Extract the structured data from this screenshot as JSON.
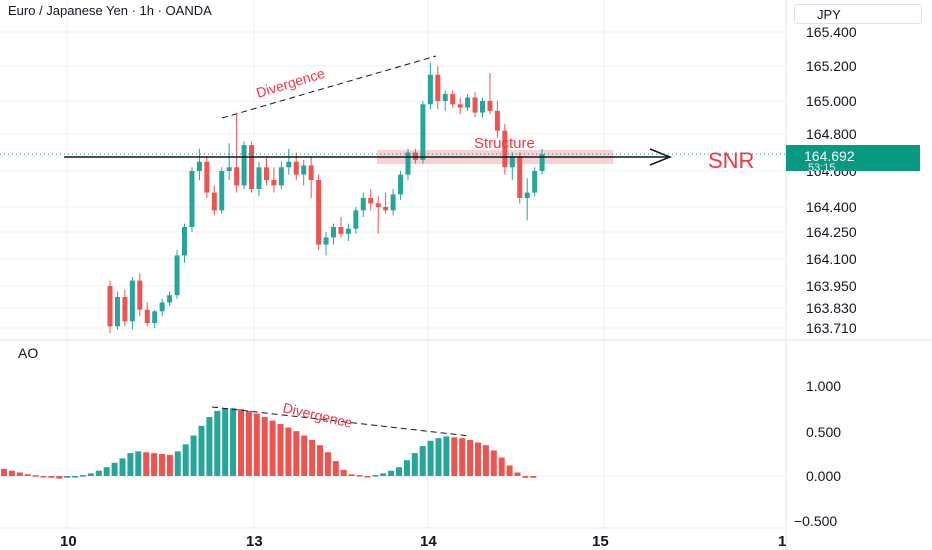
{
  "header": {
    "title": "Euro / Japanese Yen · 1h · OANDA"
  },
  "unit_label": "JPY",
  "indicator_label": "AO",
  "colors": {
    "up": "#26a69a",
    "down": "#ef5350",
    "annotation": "#f23645",
    "zone": "#f7c1c5",
    "label_bg": "#089981"
  },
  "chart_data": [
    {
      "type": "candlestick",
      "title": "Euro / Japanese Yen · 1h · OANDA",
      "y_ticks": [
        "165.400",
        "165.200",
        "165.000",
        "164.800",
        "164.600",
        "164.400",
        "164.250",
        "164.100",
        "163.950",
        "163.830",
        "163.710"
      ],
      "last_price": "164.692",
      "countdown": "53:15",
      "annotations": [
        "Divergence",
        "Structure",
        "SNR"
      ],
      "candles": [
        [
          163.95,
          163.98,
          163.68,
          163.72
        ],
        [
          163.72,
          163.92,
          163.7,
          163.89
        ],
        [
          163.89,
          163.93,
          163.72,
          163.75
        ],
        [
          163.75,
          164.0,
          163.7,
          163.98
        ],
        [
          163.98,
          164.02,
          163.78,
          163.82
        ],
        [
          163.82,
          163.86,
          163.72,
          163.74
        ],
        [
          163.74,
          163.82,
          163.71,
          163.81
        ],
        [
          163.81,
          163.88,
          163.78,
          163.86
        ],
        [
          163.86,
          163.92,
          163.84,
          163.9
        ],
        [
          163.9,
          164.15,
          163.88,
          164.12
        ],
        [
          164.12,
          164.3,
          164.08,
          164.28
        ],
        [
          164.28,
          164.62,
          164.25,
          164.6
        ],
        [
          164.6,
          164.72,
          164.55,
          164.65
        ],
        [
          164.65,
          164.68,
          164.45,
          164.48
        ],
        [
          164.48,
          164.52,
          164.35,
          164.38
        ],
        [
          164.38,
          164.62,
          164.36,
          164.6
        ],
        [
          164.6,
          164.75,
          164.55,
          164.62
        ],
        [
          164.62,
          164.92,
          164.48,
          164.52
        ],
        [
          164.52,
          164.76,
          164.5,
          164.74
        ],
        [
          164.74,
          164.76,
          164.48,
          164.5
        ],
        [
          164.5,
          164.65,
          164.46,
          164.62
        ],
        [
          164.62,
          164.68,
          164.52,
          164.55
        ],
        [
          164.55,
          164.62,
          164.48,
          164.52
        ],
        [
          164.52,
          164.65,
          164.5,
          164.62
        ],
        [
          164.62,
          164.72,
          164.58,
          164.65
        ],
        [
          164.65,
          164.7,
          164.55,
          164.58
        ],
        [
          164.58,
          164.66,
          164.52,
          164.63
        ],
        [
          164.63,
          164.68,
          164.45,
          164.55
        ],
        [
          164.55,
          164.58,
          164.15,
          164.18
        ],
        [
          164.18,
          164.25,
          164.12,
          164.22
        ],
        [
          164.22,
          164.3,
          164.18,
          164.28
        ],
        [
          164.28,
          164.34,
          164.22,
          164.24
        ],
        [
          164.24,
          164.3,
          164.2,
          164.27
        ],
        [
          164.27,
          164.4,
          164.24,
          164.38
        ],
        [
          164.38,
          164.48,
          164.34,
          164.45
        ],
        [
          164.45,
          164.5,
          164.38,
          164.42
        ],
        [
          164.42,
          164.46,
          164.24,
          164.4
        ],
        [
          164.4,
          164.48,
          164.36,
          164.38
        ],
        [
          164.38,
          164.5,
          164.35,
          164.47
        ],
        [
          164.47,
          164.6,
          164.44,
          164.58
        ],
        [
          164.58,
          164.72,
          164.55,
          164.7
        ],
        [
          164.7,
          164.72,
          164.64,
          164.66
        ],
        [
          164.66,
          165.0,
          164.64,
          164.98
        ],
        [
          164.98,
          165.22,
          164.95,
          165.15
        ],
        [
          165.15,
          165.2,
          164.95,
          165.0
        ],
        [
          165.0,
          165.06,
          164.94,
          165.04
        ],
        [
          165.04,
          165.06,
          164.96,
          164.98
        ],
        [
          164.98,
          165.02,
          164.92,
          164.96
        ],
        [
          164.96,
          165.04,
          164.94,
          165.02
        ],
        [
          165.02,
          165.05,
          164.9,
          164.93
        ],
        [
          164.93,
          165.02,
          164.9,
          165.0
        ],
        [
          165.0,
          165.16,
          164.92,
          164.94
        ],
        [
          164.94,
          165.0,
          164.78,
          164.82
        ],
        [
          164.82,
          164.86,
          164.58,
          164.62
        ],
        [
          164.62,
          164.7,
          164.55,
          164.68
        ],
        [
          164.68,
          164.7,
          164.42,
          164.45
        ],
        [
          164.45,
          164.56,
          164.32,
          164.48
        ],
        [
          164.48,
          164.62,
          164.46,
          164.6
        ],
        [
          164.6,
          164.72,
          164.58,
          164.69
        ]
      ]
    },
    {
      "type": "bar",
      "title": "AO",
      "y_ticks": [
        "1.000",
        "0.500",
        "0.000",
        "−0.500"
      ],
      "values": [
        0.08,
        0.06,
        0.04,
        0.02,
        0.01,
        -0.01,
        -0.02,
        -0.03,
        -0.02,
        -0.01,
        0.01,
        0.03,
        0.06,
        0.1,
        0.15,
        0.2,
        0.26,
        0.28,
        0.27,
        0.26,
        0.25,
        0.24,
        0.28,
        0.36,
        0.46,
        0.57,
        0.67,
        0.74,
        0.77,
        0.77,
        0.76,
        0.74,
        0.71,
        0.67,
        0.63,
        0.59,
        0.55,
        0.51,
        0.46,
        0.41,
        0.35,
        0.27,
        0.17,
        0.07,
        0.02,
        0.01,
        0.0,
        0.01,
        0.03,
        0.06,
        0.1,
        0.18,
        0.26,
        0.34,
        0.4,
        0.43,
        0.45,
        0.44,
        0.43,
        0.41,
        0.38,
        0.35,
        0.29,
        0.21,
        0.12,
        0.04,
        -0.02,
        -0.02
      ],
      "colors": [
        "d",
        "d",
        "d",
        "d",
        "d",
        "d",
        "d",
        "d",
        "u",
        "u",
        "u",
        "u",
        "u",
        "u",
        "u",
        "u",
        "u",
        "u",
        "d",
        "d",
        "d",
        "d",
        "u",
        "u",
        "u",
        "u",
        "u",
        "u",
        "u",
        "u",
        "d",
        "d",
        "d",
        "d",
        "d",
        "d",
        "d",
        "d",
        "d",
        "d",
        "d",
        "d",
        "d",
        "d",
        "d",
        "d",
        "d",
        "u",
        "u",
        "u",
        "u",
        "u",
        "u",
        "u",
        "u",
        "u",
        "u",
        "d",
        "d",
        "d",
        "d",
        "d",
        "d",
        "d",
        "d",
        "d",
        "d",
        "d"
      ]
    }
  ],
  "x_ticks": [
    "10",
    "13",
    "14",
    "15",
    "1"
  ]
}
